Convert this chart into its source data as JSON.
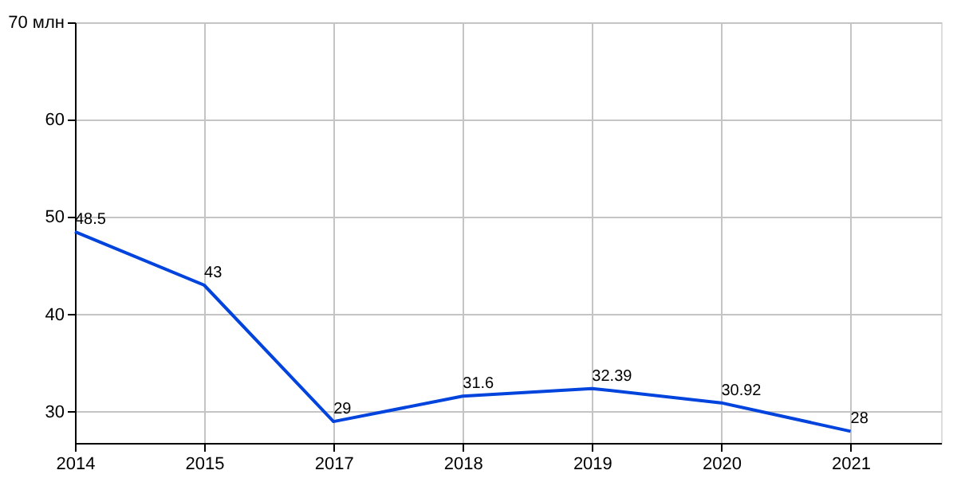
{
  "chart_data": {
    "type": "line",
    "categories": [
      "2014",
      "2015",
      "2017",
      "2018",
      "2019",
      "2020",
      "2021"
    ],
    "series": [
      {
        "color": "#0044dd",
        "values": [
          48.5,
          43,
          29,
          31.6,
          32.39,
          30.92,
          28
        ]
      }
    ],
    "ylim": [
      26.8,
      70
    ],
    "yticks": [
      30,
      40,
      50,
      60,
      {
        "value": 70,
        "label": "70 млн"
      }
    ],
    "grid": true,
    "data_labels": true,
    "marker": "none",
    "line_style": "solid"
  }
}
